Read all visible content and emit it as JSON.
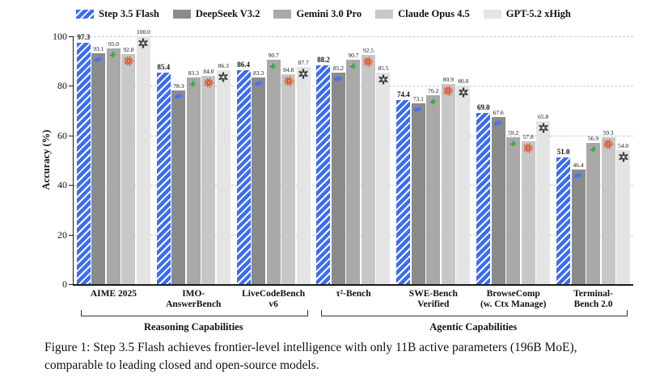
{
  "caption": {
    "text": "Figure 1: Step 3.5 Flash achieves frontier-level intelligence with only 11B active parameters (196B MoE), comparable to leading closed and open-source models."
  },
  "chart_data": {
    "type": "bar",
    "title": "",
    "xlabel": "",
    "ylabel": "Accuracy (%)",
    "ylim": [
      0,
      100
    ],
    "yticks": [
      0,
      20,
      40,
      60,
      80,
      100
    ],
    "grid": "horizontal dashed at 20/40/60/80/100",
    "legend_position": "top-center",
    "categories": [
      "AIME 2025",
      "IMO-AnswerBench",
      "LiveCodeBench v6",
      "τ²-Bench",
      "SWE-Bench Verified",
      "BrowseComp (w. Ctx Manage)",
      "Terminal-Bench 2.0"
    ],
    "category_label_lines": [
      [
        "AIME 2025"
      ],
      [
        "IMO-",
        "AnswerBench"
      ],
      [
        "LiveCodeBench",
        "v6"
      ],
      [
        "τ²-Bench"
      ],
      [
        "SWE-Bench",
        "Verified"
      ],
      [
        "BrowseComp",
        "(w. Ctx Manage)"
      ],
      [
        "Terminal-",
        "Bench 2.0"
      ]
    ],
    "category_groups": [
      {
        "label": "Reasoning Capabilities",
        "span": [
          0,
          2
        ]
      },
      {
        "label": "Agentic Capabilities",
        "span": [
          3,
          6
        ]
      }
    ],
    "series": [
      {
        "name": "Step 3.5 Flash",
        "color": "#3b6df0",
        "hatched": true,
        "icon": null,
        "values": [
          97.3,
          85.4,
          86.4,
          88.2,
          74.4,
          69.0,
          51.0
        ]
      },
      {
        "name": "DeepSeek V3.2",
        "color": "#8b8b8b",
        "hatched": false,
        "icon": "deepseek-whale-icon",
        "icon_color": "#4a73f0",
        "values": [
          93.1,
          78.3,
          83.3,
          85.2,
          73.1,
          67.6,
          46.4
        ]
      },
      {
        "name": "Gemini 3.0 Pro",
        "color": "#a9a9a9",
        "hatched": false,
        "icon": "gemini-star-icon",
        "icon_color": "#4285F4",
        "values": [
          95.0,
          83.3,
          90.7,
          90.7,
          76.2,
          59.2,
          56.9
        ]
      },
      {
        "name": "Claude Opus 4.5",
        "color": "#c7c7c7",
        "hatched": false,
        "icon": "claude-starburst-icon",
        "icon_color": "#E0552F",
        "values": [
          92.8,
          84.0,
          84.8,
          92.5,
          80.9,
          57.8,
          59.3
        ]
      },
      {
        "name": "GPT-5.2 xHigh",
        "color": "#e4e4e4",
        "hatched": false,
        "icon": "openai-logo-icon",
        "icon_color": "#3f3f3f",
        "values": [
          100.0,
          86.3,
          87.7,
          85.5,
          80.0,
          65.8,
          54.0
        ]
      }
    ]
  }
}
